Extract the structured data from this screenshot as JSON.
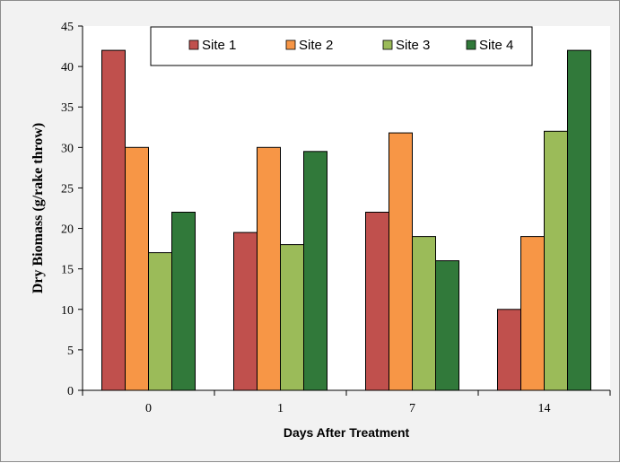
{
  "chart_data": {
    "type": "bar",
    "categories": [
      "0",
      "1",
      "7",
      "14"
    ],
    "series": [
      {
        "name": "Site 1",
        "color": "#c0504d",
        "values": [
          42,
          19.5,
          22,
          10
        ]
      },
      {
        "name": "Site 2",
        "color": "#f79646",
        "values": [
          30,
          30,
          31.8,
          19
        ]
      },
      {
        "name": "Site 3",
        "color": "#9bbb59",
        "values": [
          17,
          18,
          19,
          32
        ]
      },
      {
        "name": "Site 4",
        "color": "#31793a",
        "values": [
          22,
          29.5,
          16,
          42
        ]
      }
    ],
    "title": "",
    "xlabel": "Days After Treatment",
    "ylabel": "Dry Biomass (g/rake throw)",
    "ylim": [
      0,
      45
    ],
    "yticks": [
      "0",
      "5",
      "10",
      "15",
      "20",
      "25",
      "30",
      "35",
      "40",
      "45"
    ],
    "grid": false,
    "legend_position": "top"
  }
}
